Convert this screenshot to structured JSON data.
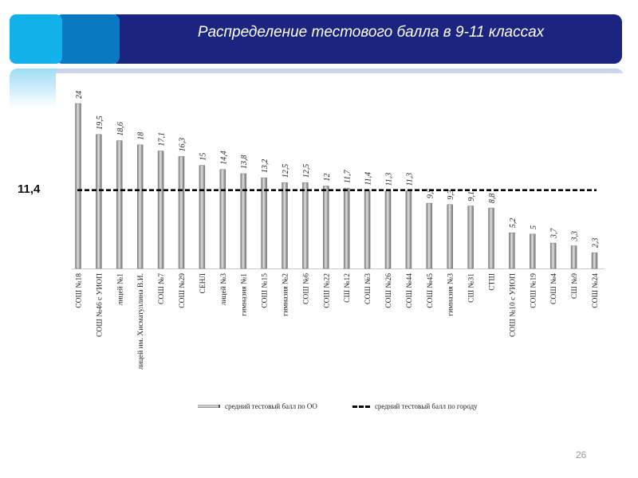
{
  "header": {
    "title": "Распределение тестового балла в 9-11 классах"
  },
  "city_average_label": "11,4",
  "page_number": "26",
  "colors": {
    "header": "#1b2580",
    "accent1": "#12b1ec",
    "accent2": "#0a78c3",
    "bar": "#9a9a9a"
  },
  "chart_data": {
    "type": "bar",
    "title": "",
    "categories": [
      "СОШ №18",
      "СОШ №46 с УИОП",
      "лицей №1",
      "лицей им. Хисматуллина В.И.",
      "СОШ №7",
      "СОШ №29",
      "СЕНЛ",
      "лицей №3",
      "гимназия №1",
      "СОШ №15",
      "гимназия №2",
      "СОШ №6",
      "СОШ №22",
      "СШ №12",
      "СОШ №3",
      "СОШ №26",
      "СОШ №44",
      "СОШ №45",
      "гимназия №3",
      "СШ №31",
      "СТШ",
      "СОШ №10 с УИОП",
      "СОШ №19",
      "СОШ №4",
      "СШ №9",
      "СОШ №24"
    ],
    "values": [
      24,
      19.5,
      18.6,
      18,
      17.1,
      16.3,
      15,
      14.4,
      13.8,
      13.2,
      12.5,
      12.5,
      12,
      11.7,
      11.4,
      11.3,
      11.3,
      9.5,
      9.3,
      9.1,
      8.8,
      5.2,
      5,
      3.7,
      3.3,
      2.3
    ],
    "value_labels": [
      "24",
      "19,5",
      "18,6",
      "18",
      "17,1",
      "16,3",
      "15",
      "14,4",
      "13,8",
      "13,2",
      "12,5",
      "12,5",
      "12",
      "11,7",
      "11,4",
      "11,3",
      "11,3",
      "9,5",
      "9,3",
      "9,1",
      "8,8",
      "5,2",
      "5",
      "3,7",
      "3,3",
      "2,3"
    ],
    "reference_line": {
      "value": 11.4,
      "name": "средний тестовый балл по городу"
    },
    "series": [
      {
        "name": "средний тестовый балл по ОО"
      }
    ],
    "ylim": [
      0,
      24
    ],
    "grid": false,
    "legend": "bottom"
  }
}
